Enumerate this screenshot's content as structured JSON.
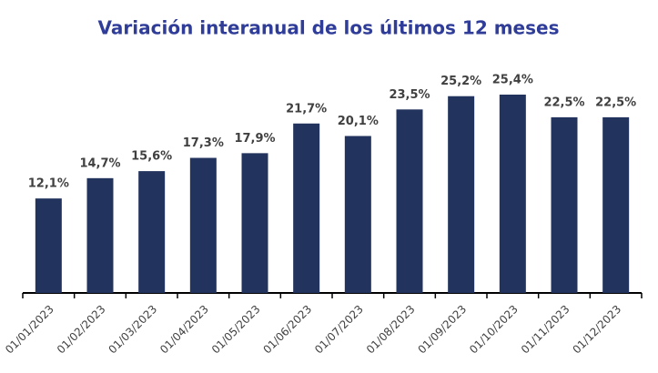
{
  "chart_data": {
    "type": "bar",
    "title": "Variación interanual de los últimos 12 meses",
    "categories": [
      "01/01/2023",
      "01/02/2023",
      "01/03/2023",
      "01/04/2023",
      "01/05/2023",
      "01/06/2023",
      "01/07/2023",
      "01/08/2023",
      "01/09/2023",
      "01/10/2023",
      "01/11/2023",
      "01/12/2023"
    ],
    "values": [
      12.1,
      14.7,
      15.6,
      17.3,
      17.9,
      21.7,
      20.1,
      23.5,
      25.2,
      25.4,
      22.5,
      22.5
    ],
    "value_labels": [
      "12,1%",
      "14,7%",
      "15,6%",
      "17,3%",
      "17,9%",
      "21,7%",
      "20,1%",
      "23,5%",
      "25,2%",
      "25,4%",
      "22,5%",
      "22,5%"
    ],
    "color": "#22335e"
  }
}
